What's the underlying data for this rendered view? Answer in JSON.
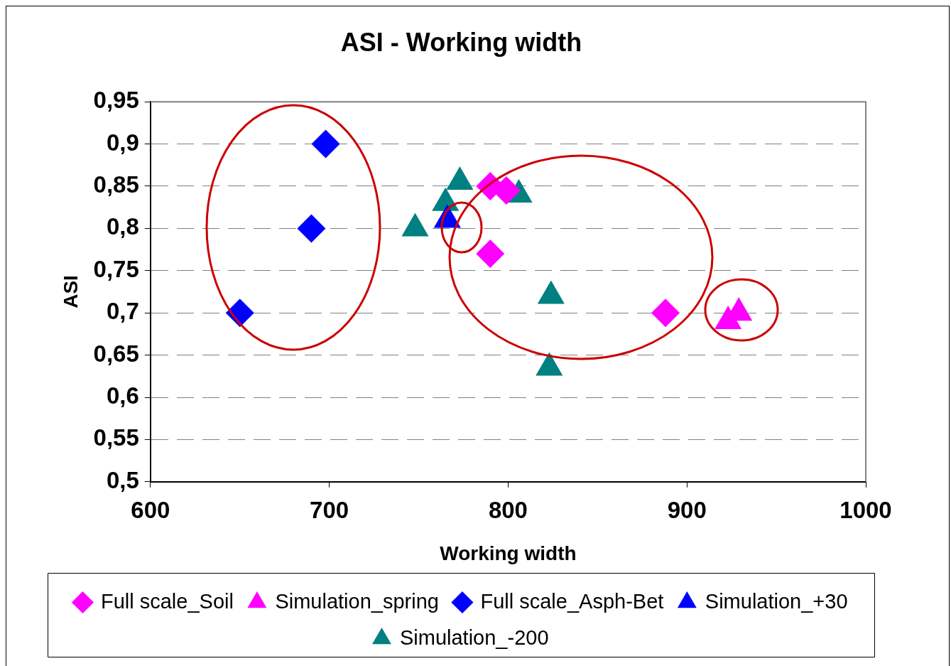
{
  "chart_data": {
    "type": "scatter",
    "title": "ASI - Working width",
    "xlabel": "Working width",
    "ylabel": "ASI",
    "xlim": [
      600,
      1000
    ],
    "xticks": [
      600,
      700,
      800,
      900,
      1000
    ],
    "ylim": [
      0.5,
      0.95
    ],
    "yticks": [
      {
        "value": 0.5,
        "label": "0,5"
      },
      {
        "value": 0.55,
        "label": "0,55"
      },
      {
        "value": 0.6,
        "label": "0,6"
      },
      {
        "value": 0.65,
        "label": "0,65"
      },
      {
        "value": 0.7,
        "label": "0,7"
      },
      {
        "value": 0.75,
        "label": "0,75"
      },
      {
        "value": 0.8,
        "label": "0,8"
      },
      {
        "value": 0.85,
        "label": "0,85"
      },
      {
        "value": 0.9,
        "label": "0,9"
      },
      {
        "value": 0.95,
        "label": "0,95"
      }
    ],
    "grid": "y",
    "legend": "bottom",
    "series": [
      {
        "name": "Full scale_Soil",
        "color": "#ff00ff",
        "marker": "diamond",
        "x": [
          790,
          799,
          790,
          888
        ],
        "values": [
          0.85,
          0.845,
          0.77,
          0.7
        ]
      },
      {
        "name": "Simulation_spring",
        "color": "#ff00ff",
        "marker": "triangle",
        "x": [
          923,
          929
        ],
        "values": [
          0.69,
          0.7
        ]
      },
      {
        "name": "Full scale_Asph-Bet",
        "color": "#0000ff",
        "marker": "diamond",
        "x": [
          650,
          698,
          690
        ],
        "values": [
          0.7,
          0.9,
          0.8
        ]
      },
      {
        "name": "Simulation_+30",
        "color": "#0000ff",
        "marker": "triangle",
        "x": [
          766
        ],
        "values": [
          0.81
        ]
      },
      {
        "name": "Simulation_-200",
        "color": "#008080",
        "marker": "triangle",
        "x": [
          748,
          765,
          773,
          806,
          824,
          823
        ],
        "values": [
          0.8,
          0.83,
          0.855,
          0.84,
          0.72,
          0.635
        ]
      }
    ]
  }
}
